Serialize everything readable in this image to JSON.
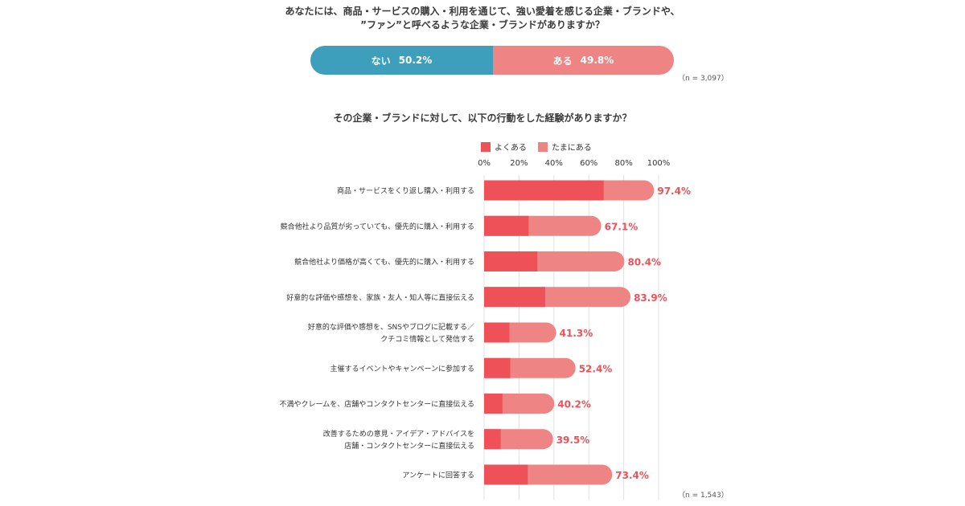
{
  "question1": {
    "line1": "あなたには、商品・サービスの購入・利用を通じて、強い愛着を感じる企業・ブランドや、",
    "line2": "”ファン”と呼べるような企業・ブランドがありますか？"
  },
  "top_bar": {
    "nai_label": "ない",
    "nai_value": 50.2,
    "nai_value_text": "50.2%",
    "aru_label": "ある",
    "aru_value": 49.8,
    "aru_value_text": "49.8%",
    "n_label": "（n = 3,097）"
  },
  "question2": "その企業・ブランドに対して、以下の行動をした経験がありますか？",
  "colors": {
    "nai": "#3d9fbc",
    "aru": "#ef8484",
    "yoku_aru": "#ee5158",
    "tama_ni_aru": "#ef8484",
    "value_text": "#ee5158",
    "grid": "#e0e0e0"
  },
  "chart_data": {
    "type": "bar",
    "orientation": "horizontal",
    "stacked": true,
    "categories": [
      [
        "商品・サービスをくり返し購入・利用する"
      ],
      [
        "競合他社より品質が劣っていても、優先的に購入・利用する"
      ],
      [
        "競合他社より価格が高くても、優先的に購入・利用する"
      ],
      [
        "好意的な評価や感想を、家族・友人・知人等に直接伝える"
      ],
      [
        "好意的な評価や感想を、SNSやブログに記載する／",
        "クチコミ情報として発信する"
      ],
      [
        "主催するイベントやキャンペーンに参加する"
      ],
      [
        "不満やクレームを、店舗やコンタクトセンターに直接伝える"
      ],
      [
        "改善するための意見・アイデア・アドバイスを",
        "店舗・コンタクトセンターに直接伝える"
      ],
      [
        "アンケートに回答する"
      ]
    ],
    "series": [
      {
        "name": "よくある",
        "values": [
          68.5,
          25.5,
          30.5,
          35.0,
          14.5,
          15.0,
          10.5,
          9.5,
          25.0
        ]
      },
      {
        "name": "たまにある",
        "values": [
          28.9,
          41.6,
          49.9,
          48.9,
          26.8,
          37.4,
          29.7,
          30.0,
          48.4
        ]
      }
    ],
    "totals": [
      97.4,
      67.1,
      80.4,
      83.9,
      41.3,
      52.4,
      40.2,
      39.5,
      73.4
    ],
    "total_labels": [
      "97.4%",
      "67.1%",
      "80.4%",
      "83.9%",
      "41.3%",
      "52.4%",
      "40.2%",
      "39.5%",
      "73.4%"
    ],
    "xlim": [
      0,
      100
    ],
    "x_ticks": [
      0,
      20,
      40,
      60,
      80,
      100
    ],
    "x_tick_labels": [
      "0%",
      "20%",
      "40%",
      "60%",
      "80%",
      "100%"
    ],
    "grid": true,
    "legend_position": "top",
    "n_label": "（n = 1,543）"
  }
}
